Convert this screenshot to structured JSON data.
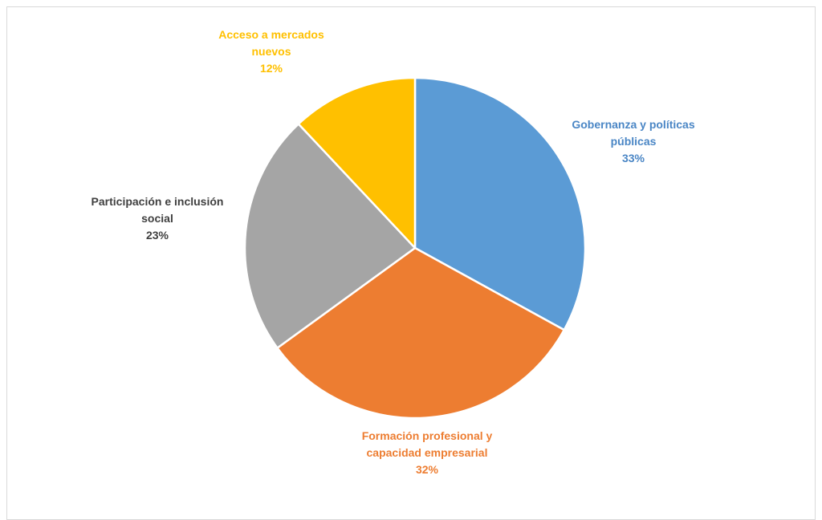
{
  "chart_data": {
    "type": "pie",
    "title": "",
    "start_angle_deg": 0,
    "direction": "clockwise",
    "slices": [
      {
        "name": "Gobernanza y políticas públicas",
        "label_lines": [
          "Gobernanza  y políticas",
          "públicas"
        ],
        "value": 33,
        "value_label": "33%",
        "color": "#5b9bd5",
        "label_color": "#4a86c5"
      },
      {
        "name": "Formación profesional y capacidad empresarial",
        "label_lines": [
          "Formación profesional  y",
          "capacidad empresarial"
        ],
        "value": 32,
        "value_label": "32%",
        "color": "#ed7d31",
        "label_color": "#ed7d31"
      },
      {
        "name": "Participación e inclusión social",
        "label_lines": [
          "Participación  e inclusión",
          "social"
        ],
        "value": 23,
        "value_label": "23%",
        "color": "#a5a5a5",
        "label_color": "#404040"
      },
      {
        "name": "Acceso a mercados nuevos",
        "label_lines": [
          "Acceso a mercados",
          "nuevos"
        ],
        "value": 12,
        "value_label": "12%",
        "color": "#ffc000",
        "label_color": "#ffc000"
      }
    ]
  }
}
